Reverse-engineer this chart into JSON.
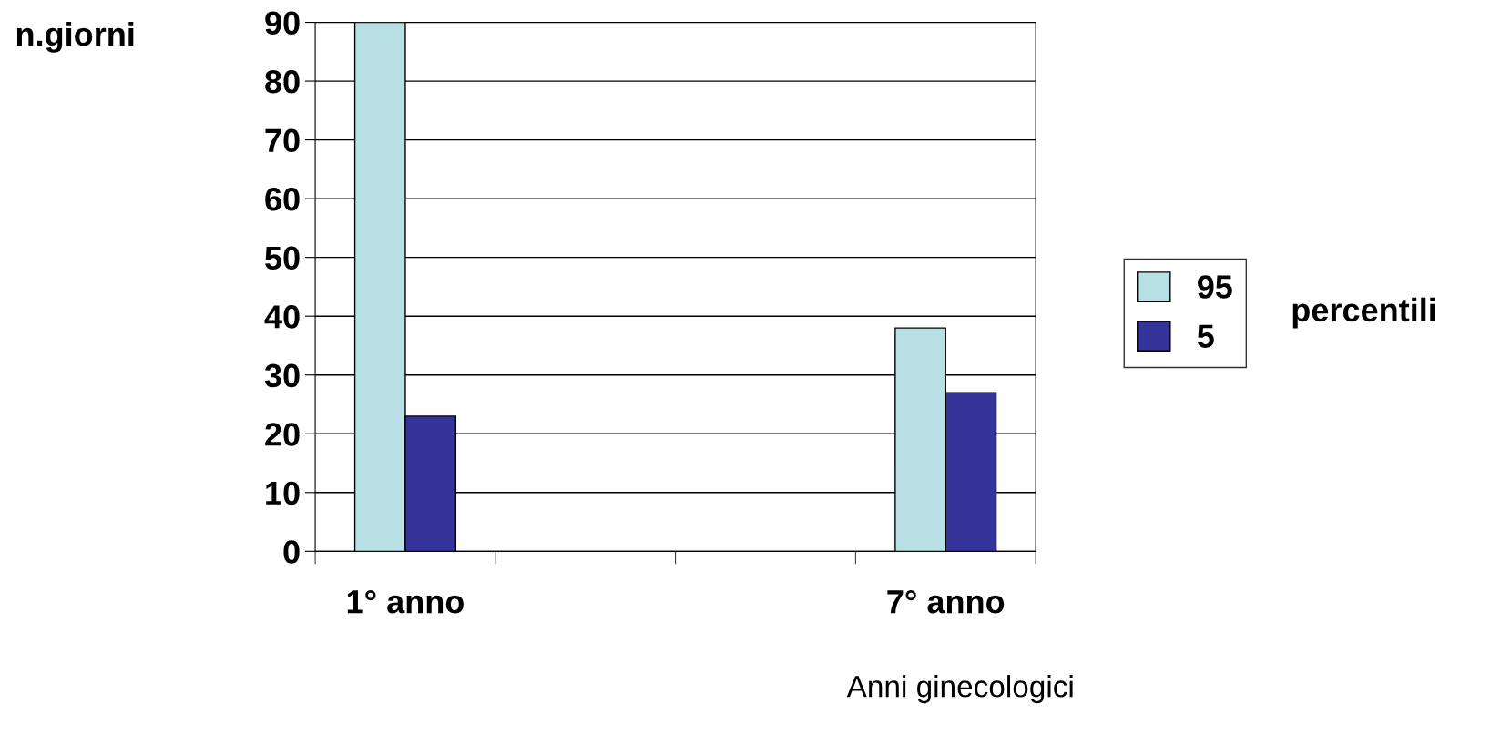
{
  "chart_data": {
    "type": "bar",
    "categories": [
      "1° anno",
      null,
      null,
      "7° anno"
    ],
    "series": [
      {
        "name": "95",
        "color": "#b8e0e4",
        "values": [
          90,
          null,
          null,
          38
        ]
      },
      {
        "name": "5",
        "color": "#333399",
        "values": [
          23,
          null,
          null,
          27
        ]
      }
    ],
    "ylabel": "n.giorni",
    "xlabel": "Anni ginecologici",
    "legend_title": "percentili",
    "ylim": [
      0,
      90
    ],
    "yticks": [
      0,
      10,
      20,
      30,
      40,
      50,
      60,
      70,
      80,
      90
    ],
    "grid": "y",
    "legend": "right"
  }
}
